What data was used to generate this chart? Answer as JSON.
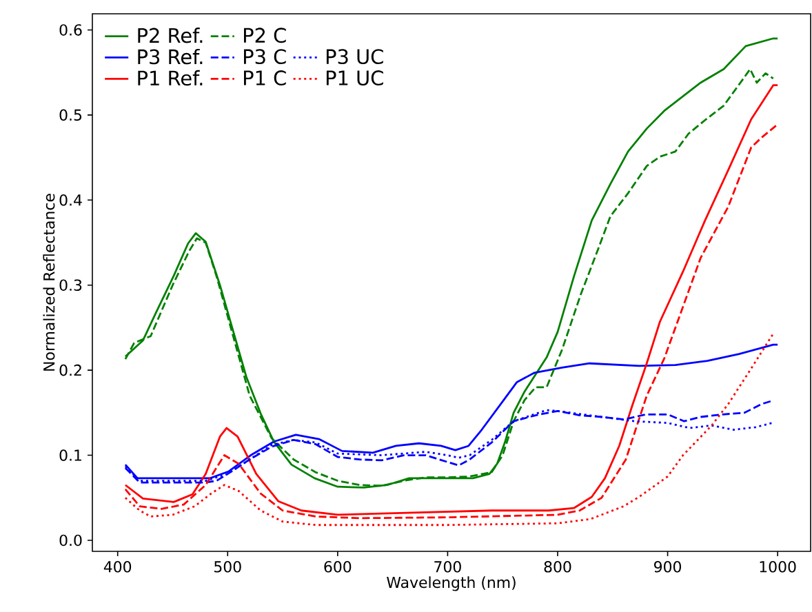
{
  "chart_data": {
    "type": "line",
    "xlabel": "Wavelength (nm)",
    "ylabel": "Normalized Reflectance",
    "xlim": [
      377,
      1030
    ],
    "ylim": [
      -0.013,
      0.619
    ],
    "xticks": [
      400,
      500,
      600,
      700,
      800,
      900,
      1000
    ],
    "yticks": [
      {
        "value": 0,
        "label": "0.0"
      },
      {
        "value": 0.1,
        "label": "0.1"
      },
      {
        "value": 0.2,
        "label": "0.2"
      },
      {
        "value": 0.3,
        "label": "0.3"
      },
      {
        "value": 0.4,
        "label": "0.4"
      },
      {
        "value": 0.5,
        "label": "0.5"
      },
      {
        "value": 0.6,
        "label": "0.6"
      }
    ],
    "grid": false,
    "legend": "top left",
    "marker": "none",
    "series": [
      {
        "name": "P2 Ref.",
        "color": "#008000",
        "line_style": "solid",
        "x": [
          407,
          423,
          435,
          451,
          464,
          471,
          480,
          493,
          505,
          517,
          530,
          542,
          558,
          579,
          600,
          624,
          645,
          665,
          698,
          723,
          738,
          745,
          752,
          760,
          770,
          780,
          790,
          800,
          815,
          831,
          848,
          864,
          881,
          897,
          914,
          930,
          951,
          971,
          996,
          1000
        ],
        "values": [
          0.216,
          0.235,
          0.268,
          0.311,
          0.349,
          0.361,
          0.351,
          0.3,
          0.246,
          0.192,
          0.149,
          0.116,
          0.089,
          0.073,
          0.063,
          0.062,
          0.065,
          0.073,
          0.073,
          0.073,
          0.078,
          0.09,
          0.115,
          0.15,
          0.175,
          0.195,
          0.215,
          0.245,
          0.311,
          0.376,
          0.419,
          0.457,
          0.484,
          0.505,
          0.522,
          0.538,
          0.554,
          0.581,
          0.59,
          0.59
        ]
      },
      {
        "name": "P3 Ref.",
        "color": "#0000ff",
        "line_style": "solid",
        "x": [
          407,
          418,
          451,
          484,
          501,
          521,
          542,
          562,
          583,
          604,
          632,
          653,
          674,
          694,
          707,
          719,
          731,
          751,
          763,
          779,
          804,
          829,
          874,
          907,
          936,
          965,
          996,
          1000
        ],
        "values": [
          0.089,
          0.073,
          0.073,
          0.073,
          0.081,
          0.1,
          0.116,
          0.124,
          0.119,
          0.105,
          0.103,
          0.111,
          0.114,
          0.111,
          0.106,
          0.111,
          0.13,
          0.165,
          0.186,
          0.197,
          0.203,
          0.208,
          0.205,
          0.206,
          0.211,
          0.219,
          0.23,
          0.23
        ]
      },
      {
        "name": "P1 Ref.",
        "color": "#ff0000",
        "line_style": "solid",
        "x": [
          407,
          423,
          451,
          468,
          480,
          493,
          499,
          509,
          526,
          546,
          567,
          600,
          657,
          740,
          792,
          815,
          831,
          843,
          856,
          868,
          881,
          893,
          914,
          934,
          955,
          976,
          996,
          1000
        ],
        "values": [
          0.065,
          0.049,
          0.045,
          0.054,
          0.078,
          0.122,
          0.132,
          0.122,
          0.078,
          0.046,
          0.035,
          0.03,
          0.032,
          0.035,
          0.035,
          0.038,
          0.051,
          0.073,
          0.111,
          0.159,
          0.208,
          0.257,
          0.316,
          0.376,
          0.435,
          0.495,
          0.535,
          0.535
        ]
      },
      {
        "name": "P2 C",
        "color": "#008000",
        "line_style": "dashed",
        "x": [
          407,
          415,
          430,
          450,
          465,
          472,
          480,
          490,
          505,
          520,
          540,
          560,
          580,
          600,
          620,
          640,
          660,
          680,
          700,
          720,
          740,
          750,
          760,
          770,
          780,
          790,
          804,
          821,
          837,
          848,
          864,
          881,
          893,
          907,
          919,
          935,
          951,
          969,
          975,
          981,
          989,
          996
        ],
        "values": [
          0.213,
          0.232,
          0.24,
          0.3,
          0.34,
          0.355,
          0.35,
          0.31,
          0.24,
          0.17,
          0.12,
          0.095,
          0.08,
          0.07,
          0.065,
          0.064,
          0.07,
          0.074,
          0.074,
          0.075,
          0.08,
          0.1,
          0.14,
          0.165,
          0.18,
          0.18,
          0.224,
          0.289,
          0.343,
          0.381,
          0.408,
          0.44,
          0.451,
          0.457,
          0.478,
          0.495,
          0.511,
          0.543,
          0.554,
          0.538,
          0.549,
          0.543
        ]
      },
      {
        "name": "P3 C",
        "color": "#0000ff",
        "line_style": "dashed",
        "x": [
          407,
          420,
          480,
          490,
          500,
          520,
          540,
          560,
          580,
          600,
          620,
          640,
          660,
          680,
          700,
          710,
          720,
          740,
          760,
          780,
          800,
          820,
          840,
          860,
          880,
          900,
          915,
          930,
          950,
          970,
          985,
          995
        ],
        "values": [
          0.085,
          0.068,
          0.068,
          0.07,
          0.078,
          0.095,
          0.11,
          0.118,
          0.113,
          0.098,
          0.095,
          0.094,
          0.1,
          0.1,
          0.092,
          0.088,
          0.095,
          0.115,
          0.14,
          0.147,
          0.152,
          0.147,
          0.145,
          0.142,
          0.148,
          0.148,
          0.14,
          0.145,
          0.148,
          0.15,
          0.16,
          0.164
        ]
      },
      {
        "name": "P1 C",
        "color": "#ff0000",
        "line_style": "dashed",
        "x": [
          407,
          420,
          440,
          460,
          480,
          497,
          510,
          530,
          550,
          580,
          620,
          700,
          800,
          820,
          840,
          862,
          881,
          897,
          930,
          955,
          976,
          985,
          1000
        ],
        "values": [
          0.06,
          0.04,
          0.037,
          0.042,
          0.065,
          0.1,
          0.09,
          0.055,
          0.035,
          0.028,
          0.026,
          0.027,
          0.03,
          0.035,
          0.05,
          0.095,
          0.17,
          0.214,
          0.332,
          0.392,
          0.462,
          0.473,
          0.489
        ]
      },
      {
        "name": "P3 UC",
        "color": "#0000ff",
        "line_style": "dotted",
        "x": [
          407,
          420,
          480,
          500,
          540,
          560,
          580,
          600,
          640,
          680,
          700,
          710,
          720,
          740,
          760,
          790,
          800,
          840,
          870,
          900,
          920,
          940,
          960,
          980,
          995
        ],
        "values": [
          0.087,
          0.07,
          0.07,
          0.078,
          0.112,
          0.118,
          0.115,
          0.102,
          0.1,
          0.104,
          0.1,
          0.097,
          0.1,
          0.118,
          0.14,
          0.153,
          0.152,
          0.145,
          0.14,
          0.138,
          0.132,
          0.135,
          0.13,
          0.133,
          0.138
        ]
      },
      {
        "name": "P1 UC",
        "color": "#ff0000",
        "line_style": "dotted",
        "x": [
          407,
          420,
          430,
          450,
          470,
          485,
          497,
          510,
          530,
          550,
          580,
          700,
          800,
          830,
          860,
          874,
          900,
          914,
          940,
          955,
          975,
          996
        ],
        "values": [
          0.05,
          0.035,
          0.028,
          0.03,
          0.04,
          0.055,
          0.065,
          0.058,
          0.035,
          0.022,
          0.018,
          0.018,
          0.02,
          0.025,
          0.04,
          0.051,
          0.075,
          0.1,
          0.135,
          0.16,
          0.2,
          0.243
        ]
      }
    ]
  }
}
